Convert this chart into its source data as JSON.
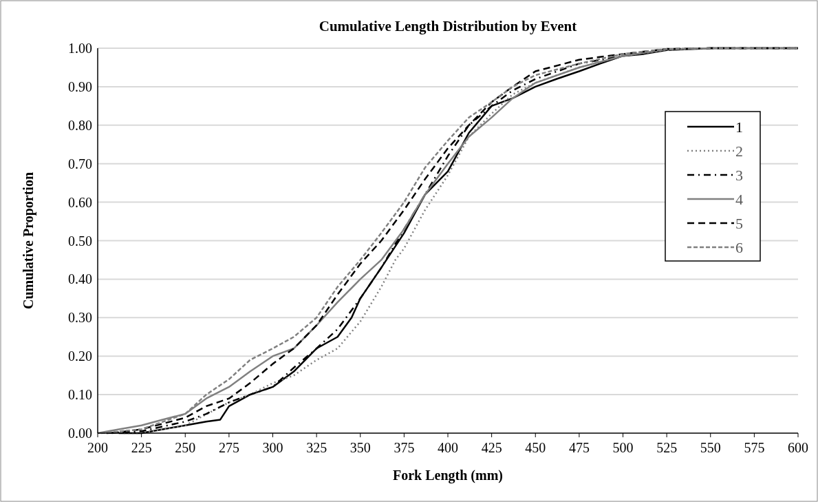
{
  "chart_data": {
    "type": "line",
    "title": "Cumulative Length Distribution by Event",
    "xlabel": "Fork Length (mm)",
    "ylabel": "Cumulative Proportion",
    "xlim": [
      200,
      600
    ],
    "xticks": [
      200,
      225,
      250,
      275,
      300,
      325,
      350,
      375,
      400,
      425,
      450,
      475,
      500,
      525,
      550,
      575,
      600
    ],
    "ylim": [
      0,
      1
    ],
    "yticks": [
      {
        "value": 0,
        "label": "0.00"
      },
      {
        "value": 0.1,
        "label": "0.10"
      },
      {
        "value": 0.2,
        "label": "0.20"
      },
      {
        "value": 0.3,
        "label": "0.30"
      },
      {
        "value": 0.4,
        "label": "0.40"
      },
      {
        "value": 0.5,
        "label": "0.50"
      },
      {
        "value": 0.6,
        "label": "0.60"
      },
      {
        "value": 0.7,
        "label": "0.70"
      },
      {
        "value": 0.8,
        "label": "0.80"
      },
      {
        "value": 0.9,
        "label": "0.90"
      },
      {
        "value": 1,
        "label": "1.00"
      }
    ],
    "grid": "y",
    "legend": "top right",
    "marker": "none",
    "series": [
      {
        "name": "1",
        "color": "#000000",
        "line_style": "solid",
        "x": [
          212,
          225,
          237,
          250,
          262,
          270,
          275,
          287,
          300,
          312,
          325,
          337,
          345,
          350,
          362,
          375,
          387,
          400,
          412,
          425,
          437,
          450,
          462,
          475,
          487,
          500,
          512,
          525,
          550,
          600
        ],
        "values": [
          0,
          0,
          0.01,
          0.02,
          0.03,
          0.035,
          0.07,
          0.1,
          0.12,
          0.16,
          0.22,
          0.25,
          0.3,
          0.35,
          0.43,
          0.52,
          0.62,
          0.68,
          0.78,
          0.85,
          0.87,
          0.9,
          0.92,
          0.94,
          0.96,
          0.98,
          0.985,
          0.995,
          1,
          1
        ]
      },
      {
        "name": "2",
        "color": "#808080",
        "line_style": "dotted",
        "x": [
          215,
          225,
          250,
          275,
          287,
          300,
          312,
          325,
          337,
          350,
          362,
          370,
          375,
          387,
          400,
          412,
          425,
          437,
          450,
          475,
          500,
          525,
          550,
          600
        ],
        "values": [
          0,
          0,
          0.02,
          0.08,
          0.1,
          0.13,
          0.15,
          0.19,
          0.22,
          0.29,
          0.38,
          0.45,
          0.48,
          0.58,
          0.67,
          0.77,
          0.83,
          0.88,
          0.91,
          0.95,
          0.98,
          0.995,
          1,
          1
        ]
      },
      {
        "name": "3",
        "color": "#000000",
        "line_style": "dashdot",
        "x": [
          205,
          225,
          250,
          262,
          275,
          287,
          300,
          312,
          325,
          337,
          350,
          362,
          375,
          387,
          400,
          412,
          425,
          437,
          450,
          475,
          500,
          525,
          550,
          600
        ],
        "values": [
          0,
          0.005,
          0.03,
          0.05,
          0.08,
          0.1,
          0.12,
          0.17,
          0.22,
          0.27,
          0.35,
          0.43,
          0.53,
          0.62,
          0.72,
          0.8,
          0.85,
          0.89,
          0.92,
          0.96,
          0.98,
          0.997,
          1,
          1
        ]
      },
      {
        "name": "4",
        "color": "#808080",
        "line_style": "solid",
        "x": [
          200,
          212,
          225,
          237,
          250,
          262,
          275,
          287,
          300,
          312,
          325,
          337,
          350,
          362,
          375,
          387,
          400,
          412,
          425,
          437,
          450,
          475,
          500,
          525,
          550,
          600
        ],
        "values": [
          0,
          0.01,
          0.02,
          0.035,
          0.05,
          0.09,
          0.12,
          0.16,
          0.2,
          0.22,
          0.28,
          0.34,
          0.4,
          0.45,
          0.53,
          0.62,
          0.7,
          0.77,
          0.82,
          0.87,
          0.91,
          0.95,
          0.98,
          0.997,
          1,
          1
        ]
      },
      {
        "name": "5",
        "color": "#000000",
        "line_style": "dashed",
        "x": [
          208,
          225,
          250,
          262,
          275,
          287,
          300,
          312,
          325,
          337,
          350,
          362,
          375,
          387,
          400,
          412,
          425,
          437,
          450,
          475,
          500,
          525,
          550,
          600
        ],
        "values": [
          0,
          0.01,
          0.04,
          0.07,
          0.09,
          0.13,
          0.18,
          0.22,
          0.28,
          0.36,
          0.44,
          0.5,
          0.58,
          0.66,
          0.74,
          0.8,
          0.86,
          0.9,
          0.94,
          0.97,
          0.985,
          0.998,
          1,
          1
        ]
      },
      {
        "name": "6",
        "color": "#808080",
        "line_style": "shortdash",
        "x": [
          202,
          225,
          250,
          262,
          275,
          287,
          300,
          312,
          325,
          337,
          350,
          362,
          375,
          387,
          400,
          412,
          425,
          437,
          450,
          475,
          500,
          525,
          550,
          600
        ],
        "values": [
          0,
          0.01,
          0.05,
          0.1,
          0.14,
          0.19,
          0.22,
          0.25,
          0.3,
          0.38,
          0.45,
          0.52,
          0.6,
          0.69,
          0.76,
          0.82,
          0.86,
          0.9,
          0.93,
          0.96,
          0.985,
          0.998,
          1,
          1
        ]
      }
    ]
  }
}
